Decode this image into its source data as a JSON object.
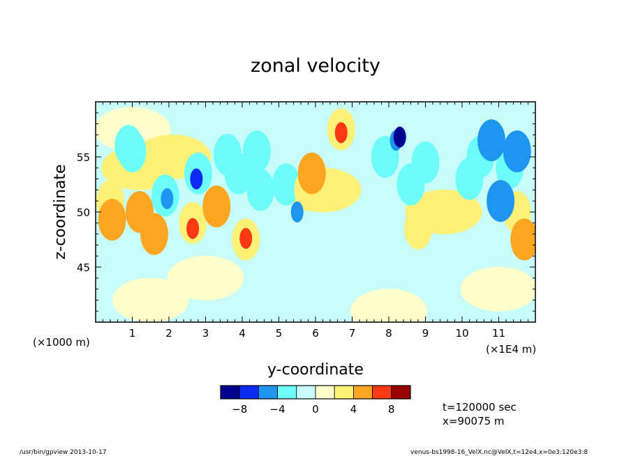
{
  "chart_data": {
    "type": "heatmap",
    "title": "zonal velocity",
    "xlabel": "y-coordinate",
    "ylabel": "z-coordinate",
    "x_unit_left": "(×1000 m)",
    "x_unit_right": "(×1E4 m)",
    "xlim": [
      0,
      12
    ],
    "ylim": [
      40,
      60
    ],
    "x_ticks": [
      "1",
      "2",
      "3",
      "4",
      "5",
      "6",
      "7",
      "8",
      "9",
      "10",
      "11"
    ],
    "y_ticks": [
      "45",
      "50",
      "55"
    ],
    "colorbar": {
      "colors": [
        "#000093",
        "#0c2cf3",
        "#1e96f0",
        "#6cfcfa",
        "#c8fcfa",
        "#fffecb",
        "#fff078",
        "#fea622",
        "#ff3a12",
        "#9a0000"
      ],
      "tick_labels": [
        "−8",
        "−4",
        "0",
        "4",
        "8"
      ]
    },
    "annotations": [
      "t=120000 sec",
      "x=90075 m"
    ],
    "footer_left": "/usr/bin/gpview   2013-10-17",
    "footer_right": "venus-bs1998-16_VelX.nc@VelX,t=12e4,x=0e3:120e3:8",
    "features": [
      {
        "y": 1.0,
        "z": 57.5,
        "value": 0
      },
      {
        "y": 0.9,
        "z": 56.0,
        "value": -3
      },
      {
        "y": 0.4,
        "z": 51.0,
        "value": 3
      },
      {
        "y": 0.45,
        "z": 49.3,
        "value": 5
      },
      {
        "y": 1.2,
        "z": 54.0,
        "value": 2
      },
      {
        "y": 1.0,
        "z": 55.5,
        "value": -4
      },
      {
        "y": 1.2,
        "z": 50.0,
        "value": 4
      },
      {
        "y": 1.6,
        "z": 48.0,
        "value": 4
      },
      {
        "y": 1.9,
        "z": 51.5,
        "value": -3
      },
      {
        "y": 1.95,
        "z": 51.2,
        "value": -6
      },
      {
        "y": 2.1,
        "z": 55.0,
        "value": 2
      },
      {
        "y": 2.8,
        "z": 53.5,
        "value": -3
      },
      {
        "y": 2.75,
        "z": 53.0,
        "value": -7
      },
      {
        "y": 2.65,
        "z": 49.0,
        "value": 3
      },
      {
        "y": 2.65,
        "z": 48.5,
        "value": 6
      },
      {
        "y": 3.3,
        "z": 50.5,
        "value": 5
      },
      {
        "y": 3.6,
        "z": 55.2,
        "value": -3
      },
      {
        "y": 3.9,
        "z": 53.5,
        "value": -3
      },
      {
        "y": 4.1,
        "z": 47.5,
        "value": 3
      },
      {
        "y": 4.1,
        "z": 47.6,
        "value": 6
      },
      {
        "y": 4.4,
        "z": 55.5,
        "value": -3
      },
      {
        "y": 4.5,
        "z": 52.0,
        "value": -3
      },
      {
        "y": 5.2,
        "z": 52.5,
        "value": -3
      },
      {
        "y": 5.5,
        "z": 50.0,
        "value": -6
      },
      {
        "y": 5.8,
        "z": 52.0,
        "value": 3
      },
      {
        "y": 5.9,
        "z": 53.5,
        "value": 5
      },
      {
        "y": 6.7,
        "z": 57.5,
        "value": 3
      },
      {
        "y": 6.7,
        "z": 57.2,
        "value": 6
      },
      {
        "y": 6.2,
        "z": 52.0,
        "value": 2
      },
      {
        "y": 7.9,
        "z": 55.0,
        "value": -3
      },
      {
        "y": 8.2,
        "z": 56.5,
        "value": -6
      },
      {
        "y": 8.3,
        "z": 56.8,
        "value": -9
      },
      {
        "y": 8.6,
        "z": 52.5,
        "value": -3
      },
      {
        "y": 9.0,
        "z": 54.5,
        "value": -3
      },
      {
        "y": 9.5,
        "z": 50.0,
        "value": 2
      },
      {
        "y": 8.8,
        "z": 48.5,
        "value": 3
      },
      {
        "y": 10.2,
        "z": 53.0,
        "value": -3
      },
      {
        "y": 10.5,
        "z": 55.0,
        "value": -3
      },
      {
        "y": 10.8,
        "z": 56.5,
        "value": -5
      },
      {
        "y": 11.05,
        "z": 51.0,
        "value": -5
      },
      {
        "y": 11.3,
        "z": 54.0,
        "value": -3
      },
      {
        "y": 11.5,
        "z": 55.5,
        "value": -5
      },
      {
        "y": 11.5,
        "z": 50.0,
        "value": 3
      },
      {
        "y": 11.7,
        "z": 47.5,
        "value": 5
      },
      {
        "y": 6.5,
        "z": 44.5,
        "value": -1
      },
      {
        "y": 9.5,
        "z": 46.0,
        "value": -1
      },
      {
        "y": 3.0,
        "z": 44.0,
        "value": 1
      },
      {
        "y": 1.5,
        "z": 42.0,
        "value": 1
      },
      {
        "y": 8.0,
        "z": 41.0,
        "value": 1
      },
      {
        "y": 11.0,
        "z": 43.0,
        "value": 1
      }
    ]
  }
}
